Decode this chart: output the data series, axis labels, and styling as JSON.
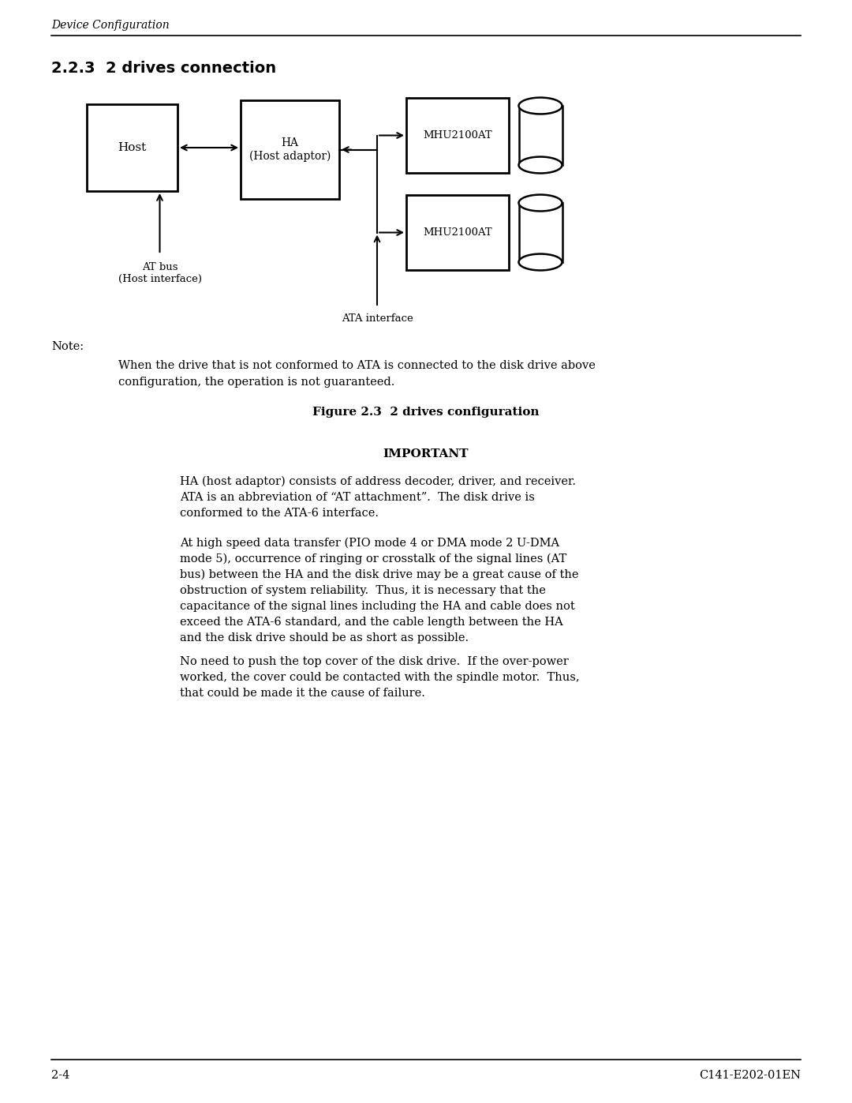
{
  "page_title": "Device Configuration",
  "section_title": "2.2.3  2 drives connection",
  "figure_caption": "Figure 2.3  2 drives configuration",
  "important_title": "IMPORTANT",
  "note_label": "Note:",
  "note_text": "When the drive that is not conformed to ATA is connected to the disk drive above\nconfiguration, the operation is not guaranteed.",
  "important_para1": "HA (host adaptor) consists of address decoder, driver, and receiver.\nATA is an abbreviation of “AT attachment”.  The disk drive is\nconformed to the ATA-6 interface.",
  "important_para2": "At high speed data transfer (PIO mode 4 or DMA mode 2 U-DMA\nmode 5), occurrence of ringing or crosstalk of the signal lines (AT\nbus) between the HA and the disk drive may be a great cause of the\nobstruction of system reliability.  Thus, it is necessary that the\ncapacitance of the signal lines including the HA and cable does not\nexceed the ATA-6 standard, and the cable length between the HA\nand the disk drive should be as short as possible.",
  "important_para3": "No need to push the top cover of the disk drive.  If the over-power\nworked, the cover could be contacted with the spindle motor.  Thus,\nthat could be made it the cause of failure.",
  "host_label": "Host",
  "ha_label": "HA\n(Host adaptor)",
  "drive1_label": "MHU2100AT",
  "drive2_label": "MHU2100AT",
  "at_bus_label": "AT bus\n(Host interface)",
  "ata_interface_label": "ATA interface",
  "footer_left": "2-4",
  "footer_right": "C141-E202-01EN",
  "bg_color": "#ffffff",
  "text_color": "#000000",
  "line_color": "#000000"
}
